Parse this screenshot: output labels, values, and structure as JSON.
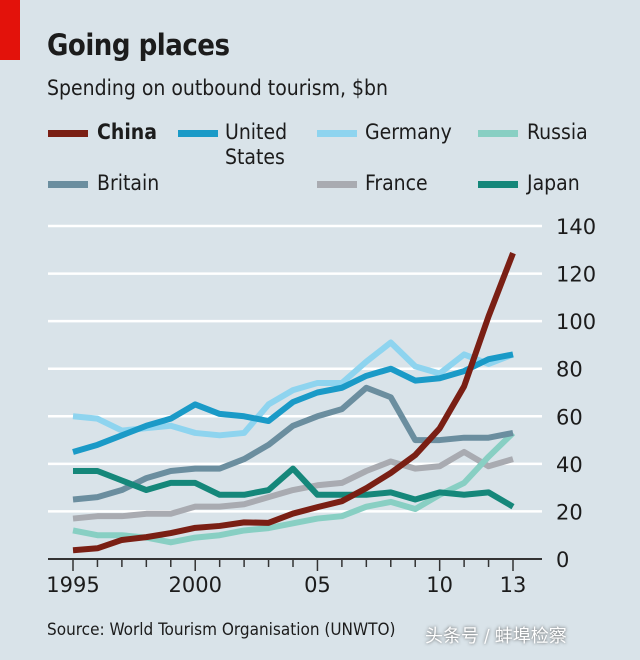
{
  "chart_data": {
    "type": "line",
    "title": "Going places",
    "subtitle": "Spending on outbound tourism, $bn",
    "xlabel": "",
    "ylabel": "$bn",
    "x": [
      1995,
      1996,
      1997,
      1998,
      1999,
      2000,
      2001,
      2002,
      2003,
      2004,
      2005,
      2006,
      2007,
      2008,
      2009,
      2010,
      2011,
      2012,
      2013
    ],
    "xlim": [
      1995,
      2013
    ],
    "ylim": [
      0,
      140
    ],
    "x_ticks": [
      {
        "year": 1995,
        "label": "1995"
      },
      {
        "year": 2000,
        "label": "2000"
      },
      {
        "year": 2005,
        "label": "05"
      },
      {
        "year": 2010,
        "label": "10"
      },
      {
        "year": 2013,
        "label": "13"
      }
    ],
    "y_ticks": [
      "0",
      "20",
      "40",
      "60",
      "80",
      "100",
      "120",
      "140"
    ],
    "y_tick_values": [
      0,
      20,
      40,
      60,
      80,
      100,
      120,
      140
    ],
    "grid": true,
    "legend_placement": "top",
    "series": [
      {
        "name": "China",
        "color": "#7a1f14",
        "values": [
          3.7,
          4.5,
          8,
          9.2,
          10.9,
          13.1,
          13.9,
          15.4,
          15.2,
          19.1,
          21.8,
          24.3,
          29.8,
          36.2,
          43.7,
          54.9,
          72.6,
          102,
          128.6
        ]
      },
      {
        "name": "United States",
        "color": "#1a9ac7",
        "values": [
          45,
          48,
          52,
          56,
          59,
          65,
          61,
          60,
          58,
          66,
          70,
          72,
          77,
          80,
          75,
          76,
          79,
          84,
          86
        ]
      },
      {
        "name": "Germany",
        "color": "#8ed4ef",
        "values": [
          60,
          59,
          54,
          55,
          56,
          53,
          52,
          53,
          65,
          71,
          74,
          74,
          83,
          91,
          81,
          78,
          86,
          82,
          86
        ]
      },
      {
        "name": "Russia",
        "color": "#88cfc3",
        "values": [
          12,
          10,
          10,
          9,
          7,
          9,
          10,
          12,
          13,
          15,
          17,
          18,
          22,
          24,
          21,
          27,
          32,
          43,
          53
        ]
      },
      {
        "name": "Britain",
        "color": "#6b8e9f",
        "values": [
          25,
          26,
          29,
          34,
          37,
          38,
          38,
          42,
          48,
          56,
          60,
          63,
          72,
          68,
          50,
          50,
          51,
          51,
          53
        ]
      },
      {
        "name": "France",
        "color": "#a9abb1",
        "values": [
          17,
          18,
          18,
          19,
          19,
          22,
          22,
          23,
          26,
          29,
          31,
          32,
          37,
          41,
          38,
          39,
          45,
          39,
          42
        ]
      },
      {
        "name": "Japan",
        "color": "#15877a",
        "values": [
          37,
          37,
          33,
          29,
          32,
          32,
          27,
          27,
          29,
          38,
          27,
          27,
          27,
          28,
          25,
          28,
          27,
          28,
          22
        ]
      }
    ],
    "legend": [
      {
        "label": "China",
        "label2": "",
        "bold": true
      },
      {
        "label": "United",
        "label2": "States"
      },
      {
        "label": "Germany",
        "label2": ""
      },
      {
        "label": "Russia",
        "label2": ""
      },
      {
        "label": "Britain",
        "label2": ""
      },
      {
        "label": "France",
        "label2": ""
      },
      {
        "label": "Japan",
        "label2": ""
      }
    ],
    "source": "Source: World Tourism Organisation (UNWTO)"
  },
  "colors": {
    "accent": "#e3120b",
    "background": "#d9e3e9"
  },
  "watermark": "头条号 / 蚌埠检察"
}
